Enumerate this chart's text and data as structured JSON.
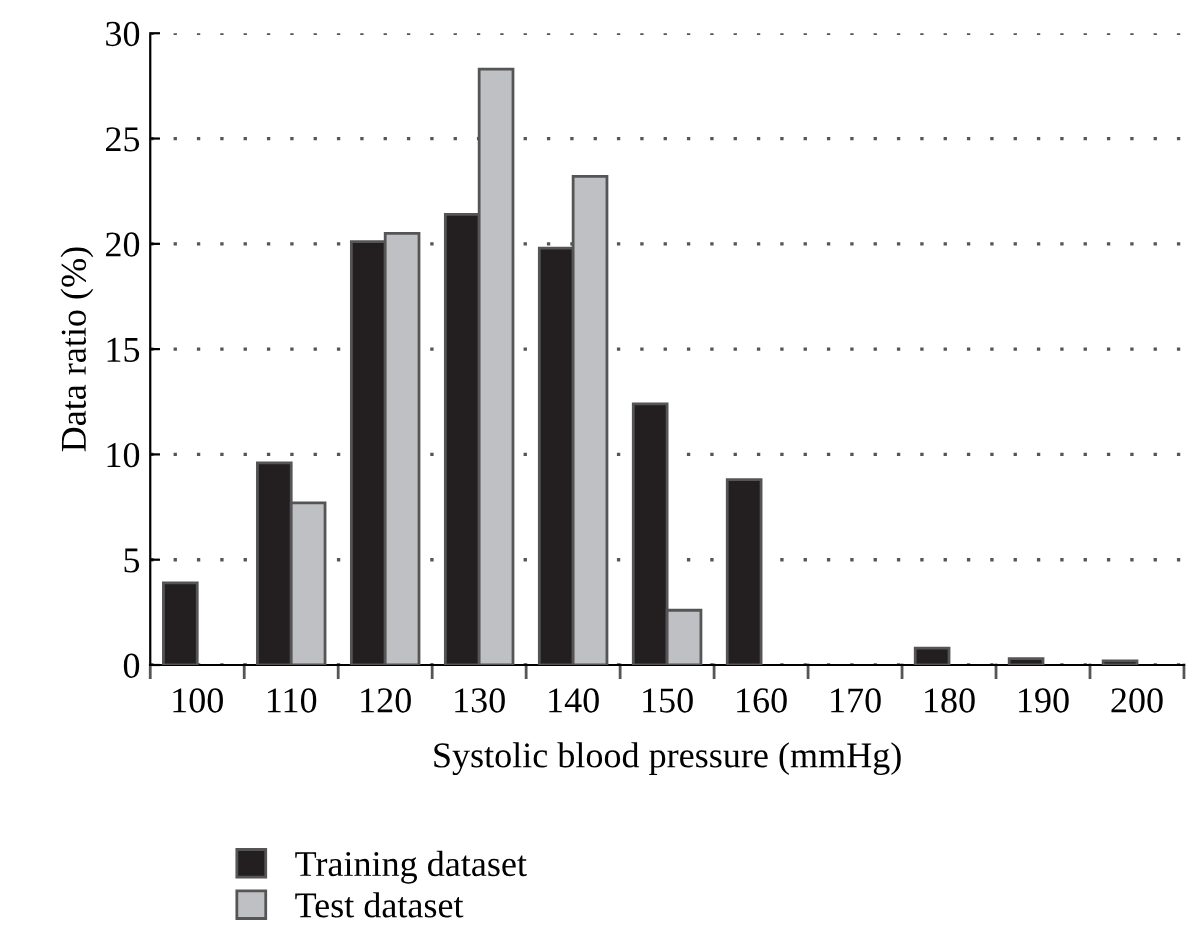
{
  "chart_data": {
    "type": "bar",
    "xlabel": "Systolic blood pressure (mmHg)",
    "ylabel": "Data ratio (%)",
    "categories": [
      "100",
      "110",
      "120",
      "130",
      "140",
      "150",
      "160",
      "170",
      "180",
      "190",
      "200"
    ],
    "series": [
      {
        "name": "Training dataset",
        "color": "#231f20",
        "values": [
          3.9,
          9.6,
          20.1,
          21.4,
          19.8,
          12.4,
          8.8,
          null,
          0.8,
          0.3,
          0.2
        ]
      },
      {
        "name": "Test dataset",
        "color": "#bfc0c3",
        "values": [
          null,
          7.7,
          20.5,
          28.3,
          23.2,
          2.6,
          null,
          null,
          null,
          null,
          null
        ]
      }
    ],
    "ylim": [
      0,
      30
    ],
    "yticks": [
      0,
      5,
      10,
      15,
      20,
      25,
      30
    ],
    "grid": "y",
    "legend": "bottom"
  }
}
